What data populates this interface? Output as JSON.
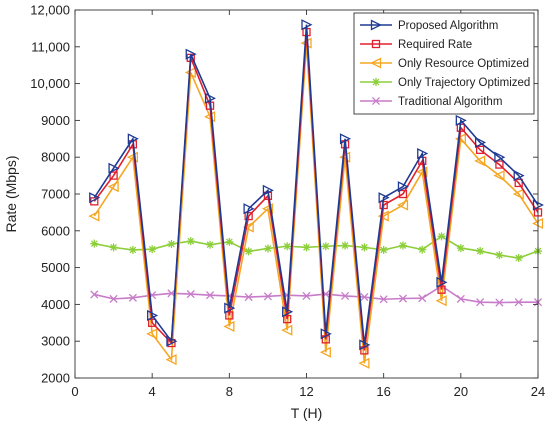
{
  "chart_data": {
    "type": "line",
    "xlabel": "T (H)",
    "ylabel": "Rate (Mbps)",
    "xlim": [
      0,
      24
    ],
    "ylim": [
      2000,
      12000
    ],
    "xticks": [
      0,
      4,
      8,
      12,
      16,
      20,
      24
    ],
    "yticks": [
      2000,
      3000,
      4000,
      5000,
      6000,
      7000,
      8000,
      9000,
      10000,
      11000,
      12000
    ],
    "xtick_labels": [
      "0",
      "4",
      "8",
      "12",
      "16",
      "20",
      "24"
    ],
    "ytick_labels": [
      "2000",
      "3000",
      "4000",
      "5000",
      "6000",
      "7000",
      "8000",
      "9000",
      "10,000",
      "11,000",
      "12,000"
    ],
    "grid": false,
    "legend_position": "top-right",
    "x": [
      1,
      2,
      3,
      4,
      5,
      6,
      7,
      8,
      9,
      10,
      11,
      12,
      13,
      14,
      15,
      16,
      17,
      18,
      19,
      20,
      21,
      22,
      23,
      24
    ],
    "series": [
      {
        "name": "Proposed Algorithm",
        "color": "#1f3a93",
        "marker": "triangle-right",
        "values": [
          6900,
          7700,
          8500,
          3700,
          3000,
          10800,
          9600,
          3900,
          6600,
          7100,
          3800,
          11600,
          3200,
          8500,
          2900,
          6900,
          7200,
          8100,
          4600,
          9000,
          8400,
          8000,
          7500,
          6700
        ]
      },
      {
        "name": "Required Rate",
        "color": "#e0202e",
        "marker": "square",
        "values": [
          6800,
          7500,
          8350,
          3500,
          2950,
          10700,
          9400,
          3700,
          6400,
          6950,
          3600,
          11400,
          3050,
          8350,
          2750,
          6700,
          7000,
          7900,
          4400,
          8800,
          8200,
          7800,
          7300,
          6500
        ]
      },
      {
        "name": "Only Resource Optimized",
        "color": "#f5a623",
        "marker": "triangle-left",
        "values": [
          6400,
          7200,
          8000,
          3200,
          2500,
          10300,
          9100,
          3400,
          6100,
          6600,
          3300,
          11100,
          2700,
          8000,
          2400,
          6400,
          6700,
          7600,
          4100,
          8500,
          7900,
          7500,
          7000,
          6200
        ]
      },
      {
        "name": "Only Trajectory Optimized",
        "color": "#8ccf3a",
        "marker": "asterisk",
        "values": [
          5650,
          5550,
          5480,
          5500,
          5640,
          5720,
          5620,
          5700,
          5440,
          5520,
          5580,
          5550,
          5580,
          5600,
          5550,
          5480,
          5600,
          5490,
          5850,
          5530,
          5450,
          5340,
          5260,
          5450
        ]
      },
      {
        "name": "Traditional Algorithm",
        "color": "#c77bc9",
        "marker": "x",
        "values": [
          4270,
          4150,
          4180,
          4250,
          4300,
          4280,
          4250,
          4230,
          4200,
          4220,
          4250,
          4230,
          4280,
          4230,
          4200,
          4140,
          4160,
          4170,
          4500,
          4150,
          4060,
          4050,
          4060,
          4060
        ]
      }
    ]
  }
}
